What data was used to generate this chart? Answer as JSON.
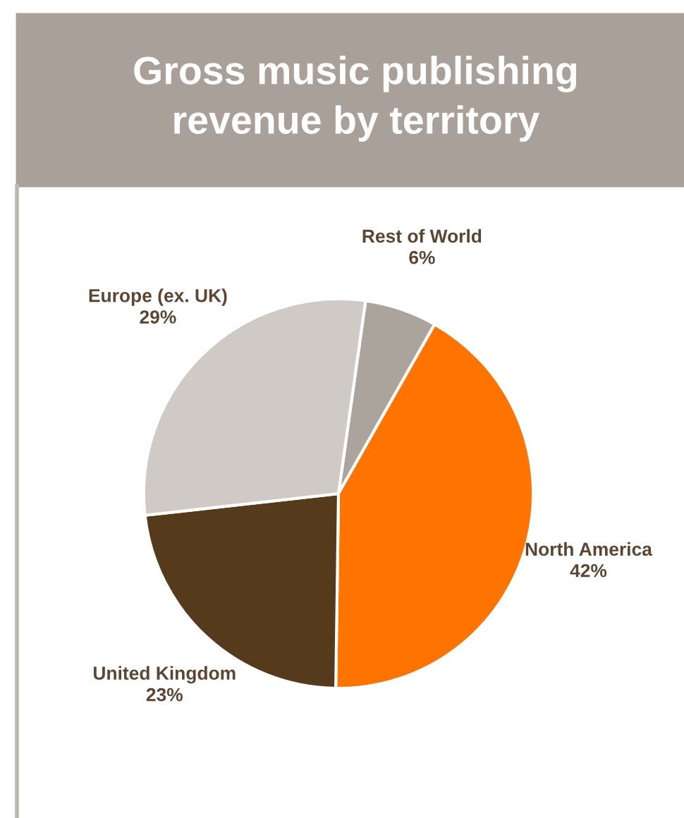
{
  "chart_data": {
    "type": "pie",
    "title": "Gross music publishing\nrevenue by territory",
    "categories": [
      "Rest of World",
      "North America",
      "United Kingdom",
      "Europe (ex. UK)"
    ],
    "values": [
      6,
      42,
      23,
      29
    ],
    "value_labels": [
      "6%",
      "42%",
      "23%",
      "29%"
    ],
    "colors": [
      "#aba49c",
      "#ff7300",
      "#553a1c",
      "#cfcac5"
    ]
  }
}
